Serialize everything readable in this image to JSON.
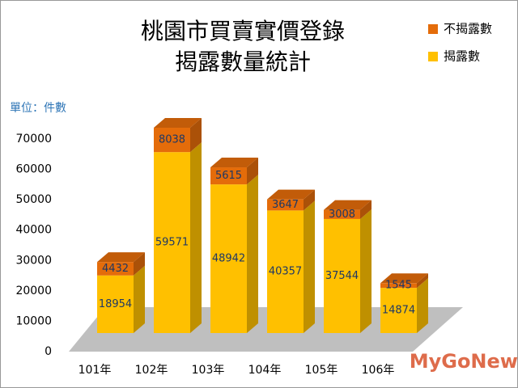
{
  "chart_data": {
    "type": "bar3d_stacked",
    "title": [
      "桃園市買賣實價登錄",
      "揭露數量統計"
    ],
    "unit_label": "單位：件數",
    "categories": [
      "101年",
      "102年",
      "103年",
      "104年",
      "105年",
      "106年"
    ],
    "series": [
      {
        "name": "揭露數",
        "color": "#FFC000",
        "values": [
          18954,
          59571,
          48942,
          40357,
          37544,
          14874
        ]
      },
      {
        "name": "不揭露數",
        "color": "#E46C0A",
        "values": [
          4432,
          8038,
          5615,
          3647,
          3008,
          1545
        ]
      }
    ],
    "ylim": [
      0,
      70000
    ],
    "yticks": [
      0,
      10000,
      20000,
      30000,
      40000,
      50000,
      60000,
      70000
    ],
    "legend": "top-right",
    "watermark": "MyGoNews"
  }
}
